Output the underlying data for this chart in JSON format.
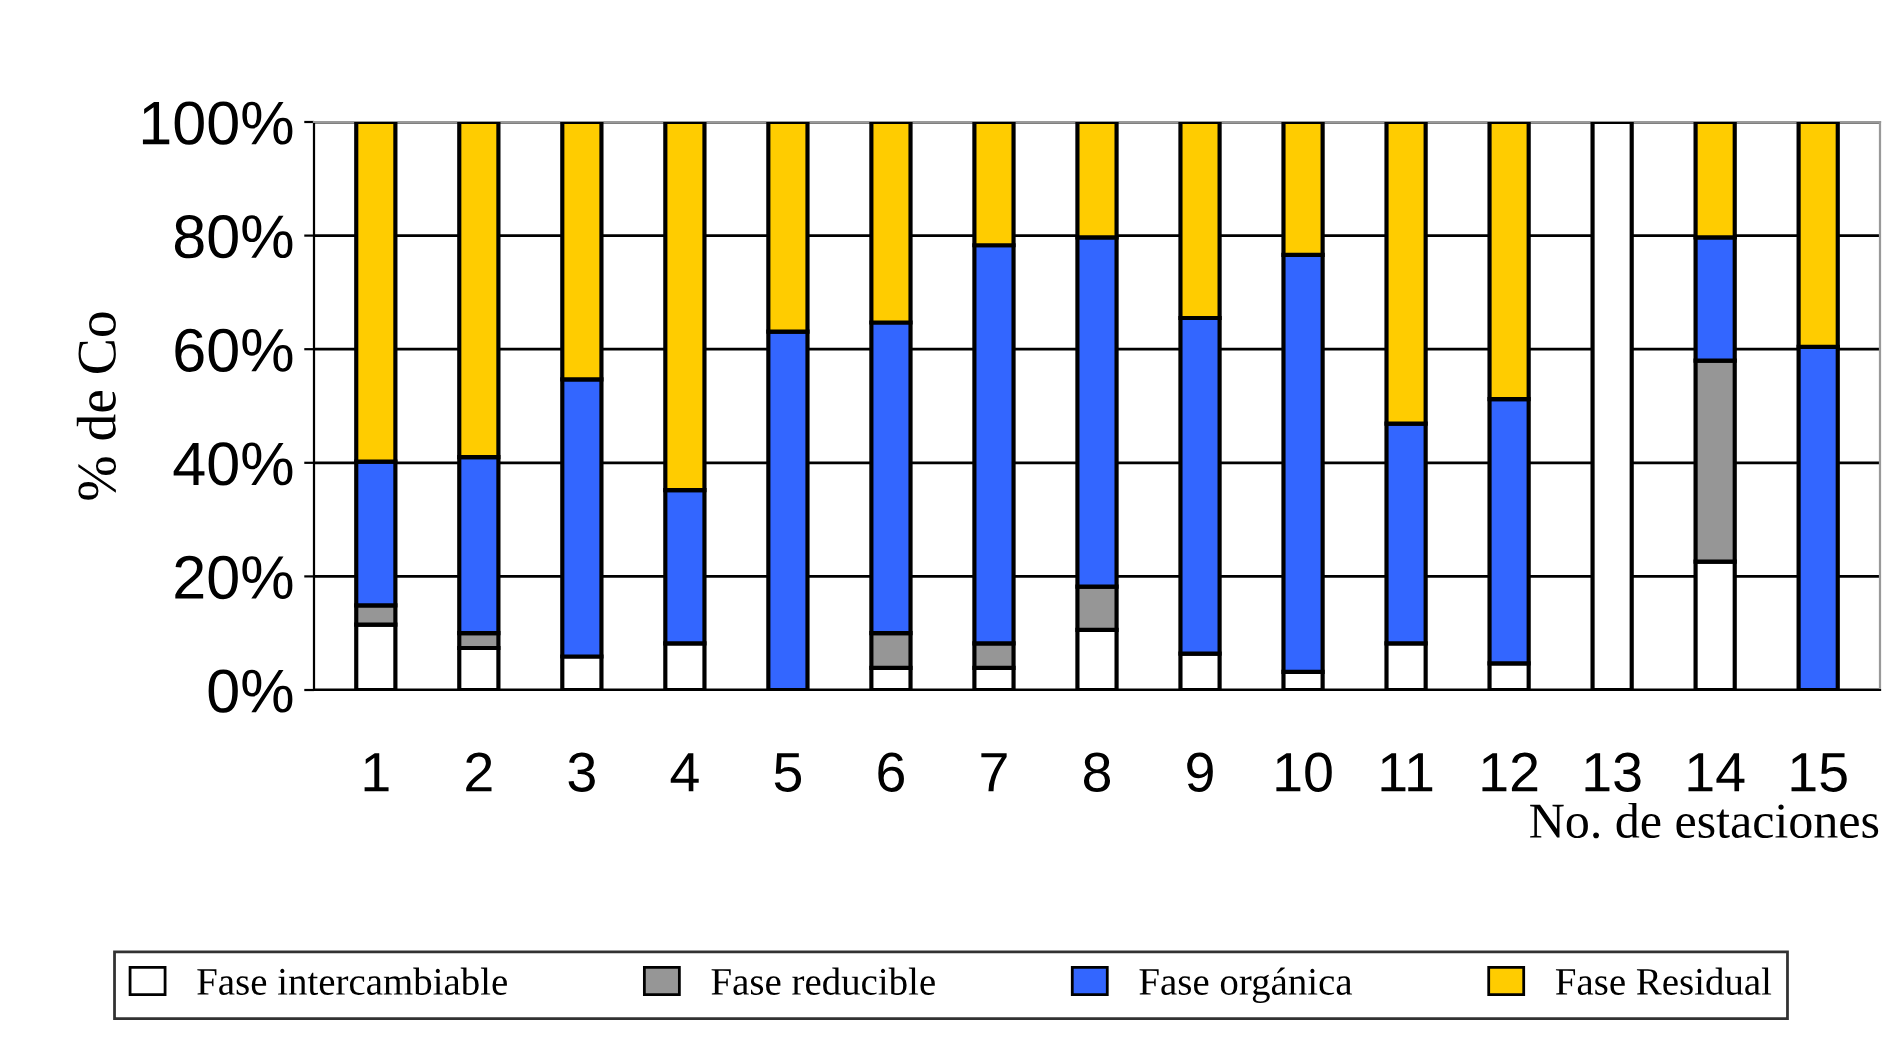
{
  "chart_data": {
    "type": "bar",
    "stacked": true,
    "xlabel": "No. de estaciones",
    "ylabel": "% de Co",
    "categories": [
      "1",
      "2",
      "3",
      "4",
      "5",
      "6",
      "7",
      "8",
      "9",
      "10",
      "11",
      "12",
      "13",
      "14",
      "15"
    ],
    "series": [
      {
        "name": "Fase intercambiable",
        "color": "#ffffff",
        "values": [
          11.5,
          7.4,
          5.9,
          8.2,
          null,
          3.9,
          3.9,
          10.6,
          6.4,
          3.2,
          8.2,
          4.7,
          100,
          22.6,
          null
        ]
      },
      {
        "name": "Fase reducible",
        "color": "#969696",
        "values": [
          3.4,
          2.6,
          null,
          null,
          null,
          6.1,
          4.3,
          7.6,
          null,
          null,
          null,
          null,
          null,
          35.4,
          null
        ]
      },
      {
        "name": "Fase orgánica",
        "color": "#3366ff",
        "values": [
          25.3,
          31.0,
          48.8,
          27.0,
          63.1,
          54.7,
          70.1,
          61.5,
          59.1,
          73.4,
          38.7,
          46.5,
          null,
          21.7,
          60.4
        ]
      },
      {
        "name": "Fase Residual",
        "color": "#ffcc00",
        "values": [
          59.8,
          59.0,
          45.3,
          64.8,
          36.9,
          35.3,
          21.7,
          20.3,
          34.5,
          23.4,
          53.1,
          48.8,
          null,
          20.3,
          39.6
        ]
      }
    ],
    "ylim": [
      0,
      100
    ],
    "yticks": [
      {
        "value": 0,
        "label": "0%"
      },
      {
        "value": 20,
        "label": "20%"
      },
      {
        "value": 40,
        "label": "40%"
      },
      {
        "value": 60,
        "label": "60%"
      },
      {
        "value": 80,
        "label": "80%"
      },
      {
        "value": 100,
        "label": "100%"
      }
    ],
    "grid": "y",
    "legend": "bottom"
  }
}
